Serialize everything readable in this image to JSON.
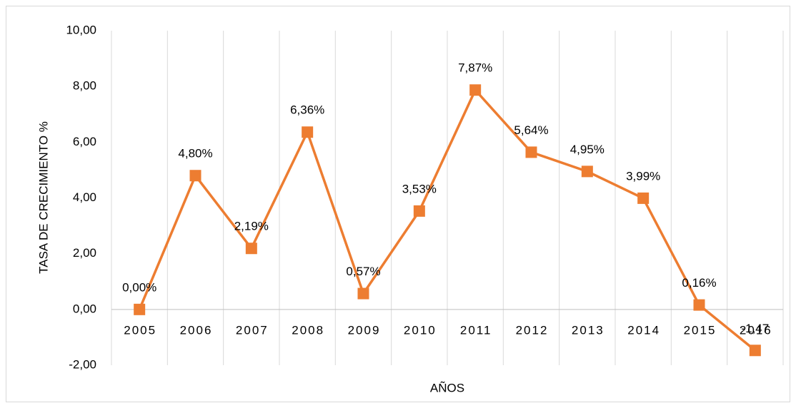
{
  "chart_data": {
    "type": "line",
    "x_label": "AÑOS",
    "y_label": "TASA DE CRECIMIENTO %",
    "categories": [
      "2005",
      "2006",
      "2007",
      "2008",
      "2009",
      "2010",
      "2011",
      "2012",
      "2013",
      "2014",
      "2015",
      "2016"
    ],
    "series": [
      {
        "name": "Tasa de crecimiento",
        "color": "#ed7d31",
        "values": [
          0.0,
          4.8,
          2.19,
          6.36,
          0.57,
          3.53,
          7.87,
          5.64,
          4.95,
          3.99,
          0.16,
          -1.47
        ],
        "value_labels": [
          "0,00%",
          "4,80%",
          "2,19%",
          "6,36%",
          "0,57%",
          "3,53%",
          "7,87%",
          "5,64%",
          "4,95%",
          "3,99%",
          "0,16%",
          "-1,47"
        ]
      }
    ],
    "ylim": [
      -2,
      10
    ],
    "yticks": [
      {
        "value": -2,
        "label": "-2,00"
      },
      {
        "value": 0,
        "label": "0,00"
      },
      {
        "value": 2,
        "label": "2,00"
      },
      {
        "value": 4,
        "label": "4,00"
      },
      {
        "value": 6,
        "label": "6,00"
      },
      {
        "value": 8,
        "label": "8,00"
      },
      {
        "value": 10,
        "label": "10,00"
      }
    ],
    "grid": "vertical"
  }
}
